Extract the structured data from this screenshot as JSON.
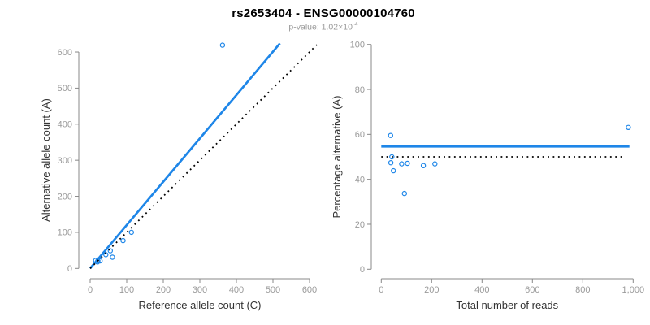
{
  "header": {
    "title": "rs2653404 - ENSG00000104760",
    "subtitle_prefix": "p-value: 1.02×10",
    "subtitle_exponent": "-4"
  },
  "colors": {
    "accent_blue": "#1e86e8",
    "dotted_black": "#000000",
    "axis_line": "#888888",
    "tick_label": "#9a9a9a",
    "axis_title": "#333333",
    "title": "#000000",
    "subtitle": "#9a9a9a",
    "background": "#ffffff"
  },
  "chart_data": [
    {
      "id": "allele-count-scatter",
      "type": "scatter",
      "xlabel": "Reference allele count (C)",
      "ylabel": "Alternative allele count (A)",
      "xlim": [
        0,
        620
      ],
      "ylim": [
        0,
        625
      ],
      "grid": false,
      "legend": "none",
      "x_ticks": {
        "values": [
          0,
          100,
          200,
          300,
          400,
          500,
          600
        ],
        "labels": [
          "0",
          "100",
          "200",
          "300",
          "400",
          "500",
          "600"
        ]
      },
      "y_ticks": {
        "values": [
          0,
          100,
          200,
          300,
          400,
          500,
          600
        ],
        "labels": [
          "0",
          "100",
          "200",
          "300",
          "400",
          "500",
          "600"
        ]
      },
      "points": [
        [
          15,
          22
        ],
        [
          21,
          21
        ],
        [
          20,
          18
        ],
        [
          27,
          21
        ],
        [
          43,
          38
        ],
        [
          61,
          31
        ],
        [
          55,
          49
        ],
        [
          90,
          77
        ],
        [
          113,
          100
        ],
        [
          362,
          619
        ]
      ],
      "lines": [
        {
          "name": "fitted-line",
          "style": "solid",
          "color_key": "accent_blue",
          "x1": 0,
          "y1": 0,
          "x2": 519,
          "y2": 624,
          "width": 2.7
        },
        {
          "name": "identity-line",
          "style": "dotted",
          "color_key": "dotted_black",
          "x1": 0,
          "y1": 0,
          "x2": 620,
          "y2": 620,
          "width": 1.8
        }
      ]
    },
    {
      "id": "percentage-scatter",
      "type": "scatter",
      "xlabel": "Total number of reads",
      "ylabel": "Percentage alternative (A)",
      "xlim": [
        0,
        1000
      ],
      "ylim": [
        0,
        100
      ],
      "grid": false,
      "legend": "none",
      "x_ticks": {
        "values": [
          0,
          200,
          400,
          600,
          800,
          1000
        ],
        "labels": [
          "0",
          "200",
          "400",
          "600",
          "800",
          "1,000"
        ]
      },
      "y_ticks": {
        "values": [
          0,
          20,
          40,
          60,
          80,
          100
        ],
        "labels": [
          "0",
          "20",
          "40",
          "60",
          "80",
          "100"
        ]
      },
      "points": [
        [
          37,
          59.5
        ],
        [
          42,
          50
        ],
        [
          38,
          47.4
        ],
        [
          48,
          43.8
        ],
        [
          81,
          46.9
        ],
        [
          92,
          33.7
        ],
        [
          104,
          47.1
        ],
        [
          167,
          46.1
        ],
        [
          213,
          46.9
        ],
        [
          981,
          63.1
        ]
      ],
      "lines": [
        {
          "name": "fitted-percentage-line",
          "style": "solid",
          "color_key": "accent_blue",
          "hline": 54.6,
          "x1": 0,
          "x2": 985,
          "width": 2.7
        },
        {
          "name": "null-percentage-line",
          "style": "dotted",
          "color_key": "dotted_black",
          "hline": 50,
          "x1": 0,
          "x2": 960,
          "width": 1.8
        }
      ]
    }
  ]
}
